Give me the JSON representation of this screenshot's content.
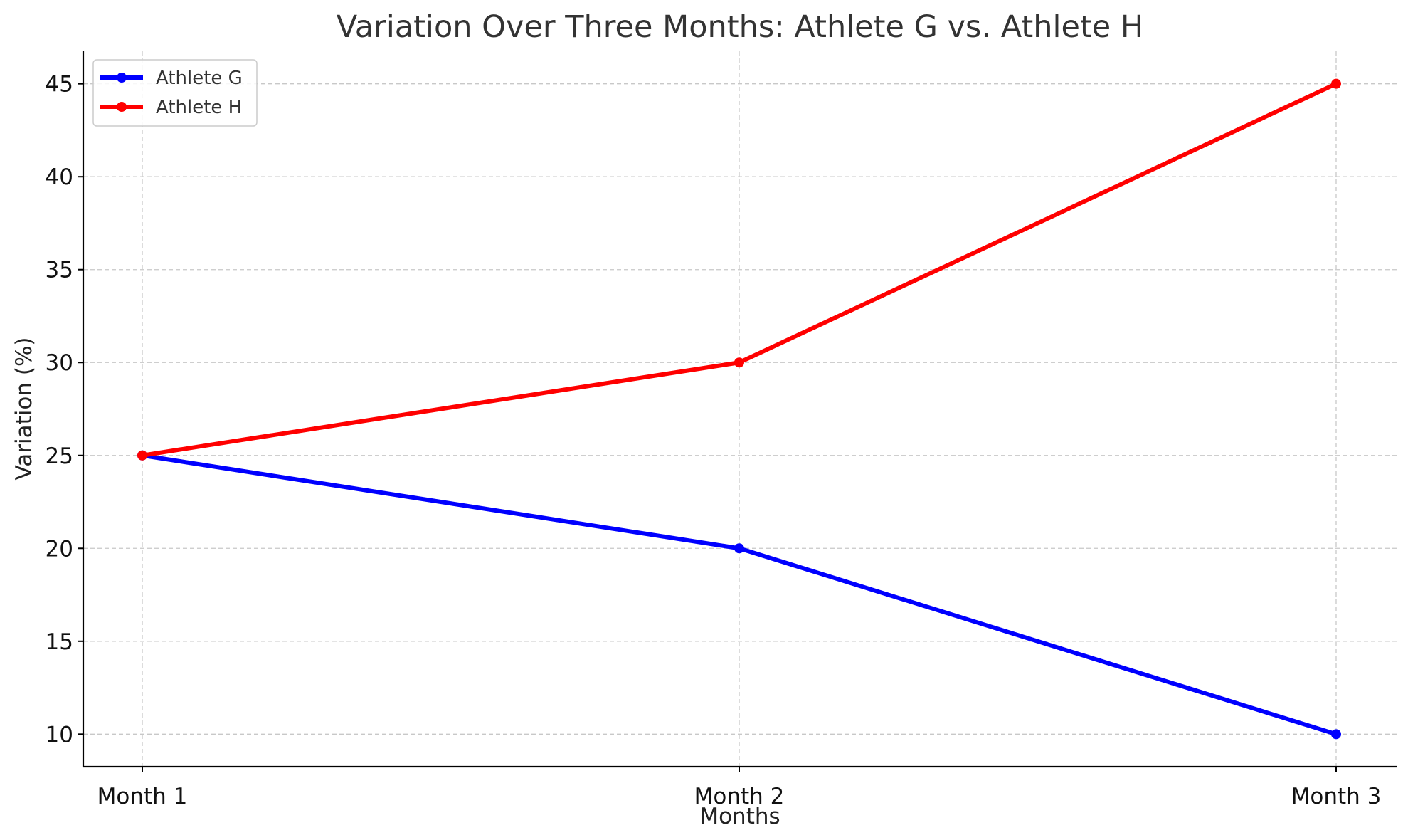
{
  "chart_data": {
    "type": "line",
    "title": "Variation Over Three Months: Athlete G vs. Athlete H",
    "xlabel": "Months",
    "ylabel": "Variation (%)",
    "categories": [
      "Month 1",
      "Month 2",
      "Month 3"
    ],
    "series": [
      {
        "name": "Athlete G",
        "values": [
          25,
          20,
          10
        ],
        "color": "#0000ff"
      },
      {
        "name": "Athlete H",
        "values": [
          25,
          30,
          45
        ],
        "color": "#ff0000"
      }
    ],
    "ylim": [
      8.25,
      46.75
    ],
    "yticks": [
      10,
      15,
      20,
      25,
      30,
      35,
      40,
      45
    ],
    "grid": true,
    "legend": "top-left"
  }
}
